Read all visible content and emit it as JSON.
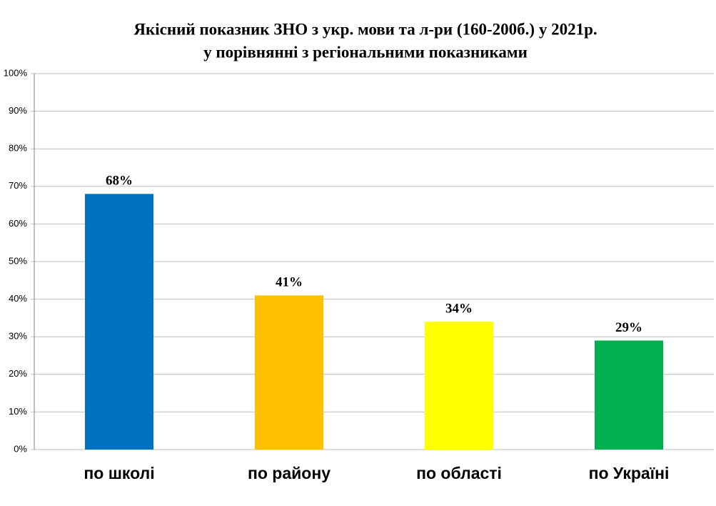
{
  "chart_data": {
    "type": "bar",
    "title": "Якісний показник ЗНО з укр. мови та л-ри (160-200б.) у 2021р.",
    "subtitle": "у порівнянні з регіональними показниками",
    "categories": [
      "по школі",
      "по району",
      "по області",
      "по Україні"
    ],
    "values": [
      68,
      41,
      34,
      29
    ],
    "value_labels": [
      "68%",
      "41%",
      "34%",
      "29%"
    ],
    "colors": [
      "#0070c0",
      "#ffc000",
      "#ffff00",
      "#00b050"
    ],
    "ylim": [
      0,
      100
    ],
    "yticks": [
      {
        "value": 0,
        "label": "0%"
      },
      {
        "value": 10,
        "label": "10%"
      },
      {
        "value": 20,
        "label": "20%"
      },
      {
        "value": 30,
        "label": "30%"
      },
      {
        "value": 40,
        "label": "40%"
      },
      {
        "value": 50,
        "label": "50%"
      },
      {
        "value": 60,
        "label": "60%"
      },
      {
        "value": 70,
        "label": "70%"
      },
      {
        "value": 80,
        "label": "80%"
      },
      {
        "value": 90,
        "label": "90%"
      },
      {
        "value": 100,
        "label": "100%"
      }
    ],
    "grid": true
  }
}
